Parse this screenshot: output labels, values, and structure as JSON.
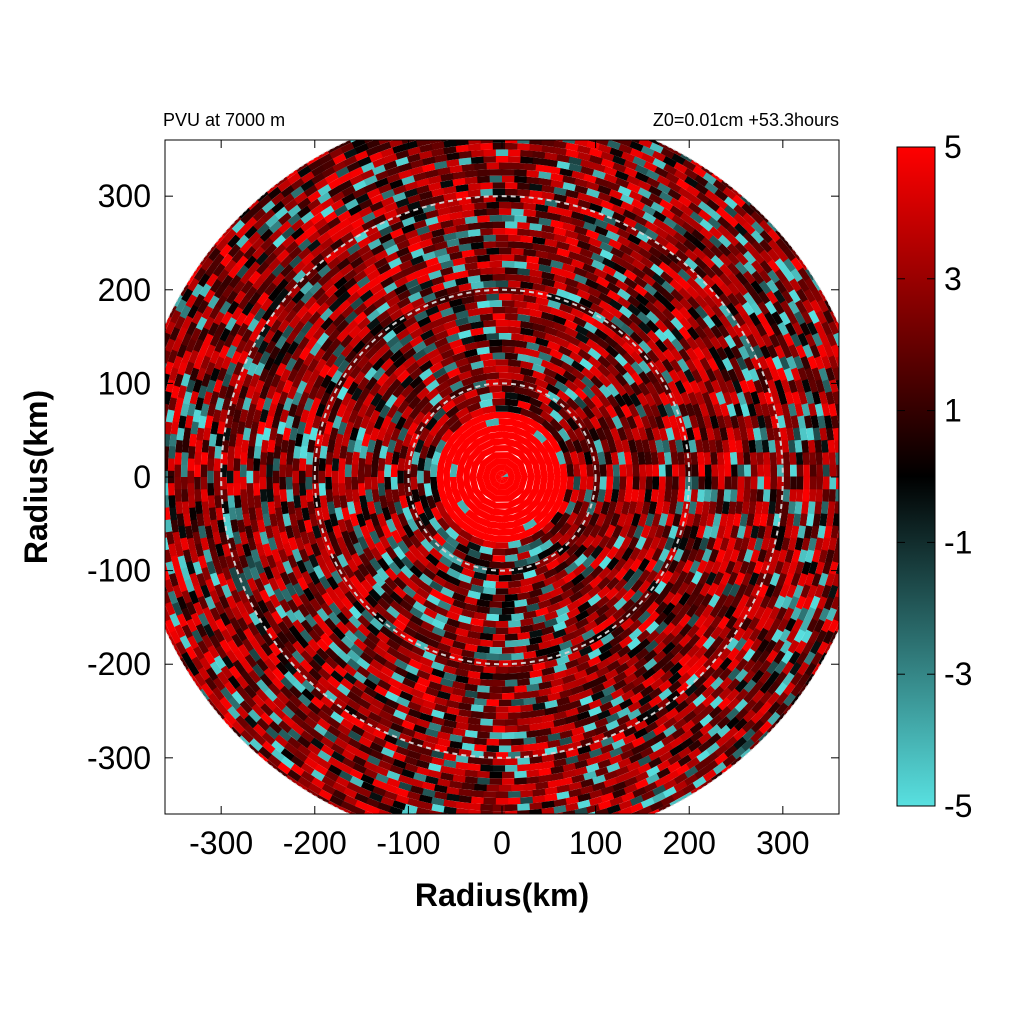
{
  "chart_data": {
    "type": "heatmap",
    "title_left": "PVU at  7000 m",
    "title_right": "Z0=0.01cm  +53.3hours",
    "xlabel": "Radius(km)",
    "ylabel": "Radius(km)",
    "xlim": [
      -360,
      360
    ],
    "ylim": [
      -360,
      360
    ],
    "x_ticks": [
      -300,
      -200,
      -100,
      0,
      100,
      200,
      300
    ],
    "y_ticks": [
      300,
      200,
      100,
      0,
      -100,
      -200,
      -300
    ],
    "x_tick_labels": [
      "-300",
      "-200",
      "-100",
      "0",
      "100",
      "200",
      "300"
    ],
    "y_tick_labels": [
      "300",
      "200",
      "100",
      "0",
      "-100",
      "-200",
      "-300"
    ],
    "domain_radius_km": 395,
    "reference_circles_km": [
      100,
      200,
      300
    ],
    "core_radius_km": 70,
    "colorbar": {
      "min": -5,
      "max": 5,
      "tick_values": [
        5,
        3,
        1,
        -1,
        -3,
        -5
      ],
      "tick_labels": [
        "5",
        "3",
        "1",
        "-1",
        "-3",
        "-5"
      ],
      "color_stops": [
        {
          "value": -5,
          "color": "#58e0e0"
        },
        {
          "value": 0,
          "color": "#000000"
        },
        {
          "value": 5,
          "color": "#ff0000"
        }
      ]
    },
    "grid": false
  }
}
